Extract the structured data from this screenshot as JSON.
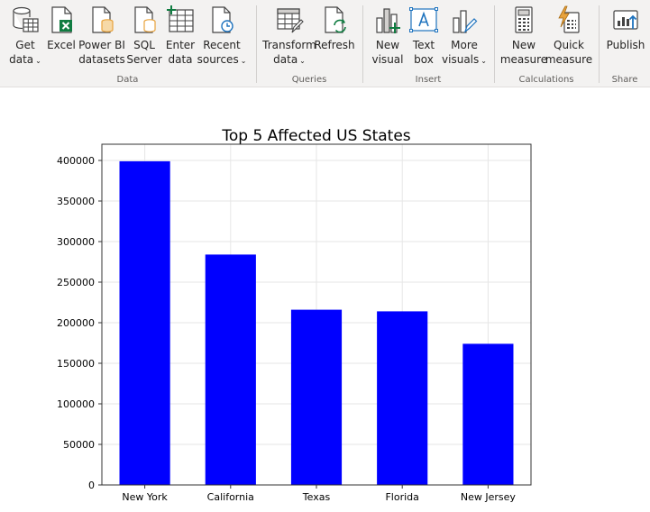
{
  "ribbon": {
    "groups": [
      {
        "name": "Data",
        "buttons": [
          {
            "id": "get-data",
            "line1": "Get",
            "line2": "data",
            "chevron": true,
            "icon": "database-grid-icon"
          },
          {
            "id": "excel",
            "line1": "Excel",
            "line2": "",
            "chevron": false,
            "icon": "excel-icon"
          },
          {
            "id": "power-bi-datasets",
            "line1": "Power BI",
            "line2": "datasets",
            "chevron": false,
            "icon": "dataset-icon"
          },
          {
            "id": "sql-server",
            "line1": "SQL",
            "line2": "Server",
            "chevron": false,
            "icon": "sql-server-icon"
          },
          {
            "id": "enter-data",
            "line1": "Enter",
            "line2": "data",
            "chevron": false,
            "icon": "table-plus-icon"
          },
          {
            "id": "recent-sources",
            "line1": "Recent",
            "line2": "sources",
            "chevron": true,
            "icon": "clock-document-icon"
          }
        ]
      },
      {
        "name": "Queries",
        "buttons": [
          {
            "id": "transform-data",
            "line1": "Transform",
            "line2": "data",
            "chevron": true,
            "icon": "table-pencil-icon"
          },
          {
            "id": "refresh",
            "line1": "Refresh",
            "line2": "",
            "chevron": false,
            "icon": "refresh-document-icon"
          }
        ]
      },
      {
        "name": "Insert",
        "buttons": [
          {
            "id": "new-visual",
            "line1": "New",
            "line2": "visual",
            "chevron": false,
            "icon": "bar-chart-plus-icon"
          },
          {
            "id": "text-box",
            "line1": "Text",
            "line2": "box",
            "chevron": false,
            "icon": "text-box-icon"
          },
          {
            "id": "more-visuals",
            "line1": "More",
            "line2": "visuals",
            "chevron": true,
            "icon": "chart-pencil-icon"
          }
        ]
      },
      {
        "name": "Calculations",
        "buttons": [
          {
            "id": "new-measure",
            "line1": "New",
            "line2": "measure",
            "chevron": false,
            "icon": "calculator-icon"
          },
          {
            "id": "quick-measure",
            "line1": "Quick",
            "line2": "measure",
            "chevron": false,
            "icon": "lightning-calculator-icon"
          }
        ]
      },
      {
        "name": "Share",
        "buttons": [
          {
            "id": "publish",
            "line1": "Publish",
            "line2": "",
            "chevron": false,
            "icon": "publish-icon"
          }
        ]
      }
    ]
  },
  "colors": {
    "bar": "#0000ff",
    "accent_green": "#107c41",
    "accent_orange": "#e8a33d",
    "accent_blue": "#1e73be"
  },
  "chart_data": {
    "type": "bar",
    "title": "Top 5 Affected US States",
    "categories": [
      "New York",
      "California",
      "Texas",
      "Florida",
      "New Jersey"
    ],
    "values": [
      399000,
      284000,
      216000,
      214000,
      174000
    ],
    "xlabel": "",
    "ylabel": "",
    "ylim": [
      0,
      420000
    ],
    "yticks": [
      0,
      50000,
      100000,
      150000,
      200000,
      250000,
      300000,
      350000,
      400000
    ],
    "grid": true
  }
}
